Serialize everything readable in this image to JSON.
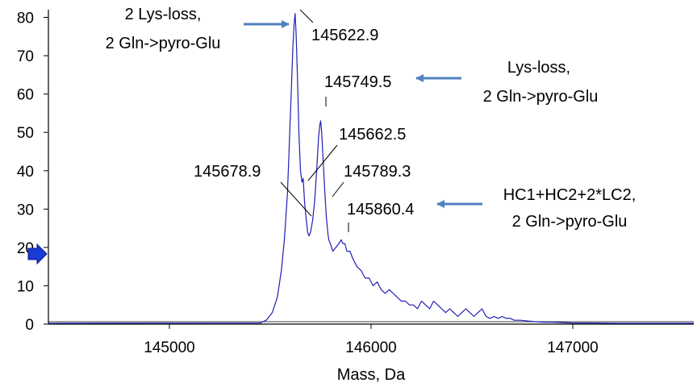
{
  "chart_data": {
    "type": "line",
    "title": "",
    "xlabel": "Mass, Da",
    "ylabel": "",
    "xlim": [
      144400,
      147600
    ],
    "ylim": [
      0,
      82
    ],
    "x_ticks": [
      145000,
      146000,
      147000
    ],
    "y_ticks": [
      0,
      10,
      20,
      30,
      40,
      50,
      60,
      70,
      80
    ],
    "grid": false,
    "legend": "none",
    "colors": {
      "line": "#1f1fb4",
      "arrow": "#4f81bd",
      "axis": "#000000",
      "marker": "#1a3ad6"
    },
    "series": [
      {
        "x": [
          144400,
          145450,
          145480,
          145510,
          145535,
          145555,
          145570,
          145585,
          145595,
          145605,
          145612,
          145618,
          145623,
          145628,
          145635,
          145642,
          145650,
          145657,
          145663,
          145670,
          145675,
          145679,
          145685,
          145692,
          145700,
          145710,
          145720,
          145730,
          145740,
          145746,
          145750,
          145755,
          145762,
          145770,
          145778,
          145785,
          145790,
          145798,
          145810,
          145825,
          145840,
          145852,
          145860,
          145870,
          145880,
          145895,
          145910,
          145930,
          145950,
          145970,
          145990,
          146010,
          146030,
          146050,
          146070,
          146090,
          146110,
          146130,
          146150,
          146170,
          146190,
          146210,
          146230,
          146250,
          146270,
          146290,
          146310,
          146330,
          146350,
          146370,
          146390,
          146410,
          146430,
          146450,
          146470,
          146490,
          146510,
          146530,
          146550,
          146570,
          146590,
          146610,
          146630,
          146650,
          146670,
          146690,
          146710,
          146740,
          146780,
          146820,
          146860,
          146900,
          146950,
          147000,
          147100,
          147200,
          147300,
          147400,
          147500,
          147600
        ],
        "y": [
          0.2,
          0.3,
          1,
          3,
          7,
          14,
          22,
          34,
          48,
          62,
          72,
          78,
          81,
          76,
          64,
          50,
          40,
          37,
          38,
          32,
          29,
          27,
          24,
          23,
          24,
          27,
          32,
          40,
          49,
          52,
          53,
          50,
          43,
          35,
          28,
          24,
          22,
          21,
          19,
          20,
          21,
          22,
          21,
          21,
          19,
          19,
          17,
          15,
          14,
          12,
          12,
          10,
          11,
          9,
          8,
          9,
          8,
          7,
          6,
          6,
          5,
          5,
          4,
          6,
          5,
          4,
          6,
          5,
          4,
          3,
          4,
          3,
          2,
          3,
          4,
          3,
          2,
          3,
          4,
          2,
          1.5,
          2,
          1.5,
          2,
          1.5,
          1.5,
          1,
          1,
          0.8,
          0.6,
          0.5,
          0.5,
          0.4,
          0.3,
          0.3,
          0.2,
          0.2,
          0.2,
          0.2,
          0.2
        ]
      }
    ],
    "peak_labels": [
      {
        "text": "145622.9",
        "mass": 145622.9
      },
      {
        "text": "145749.5",
        "mass": 145749.5
      },
      {
        "text": "145662.5",
        "mass": 145662.5
      },
      {
        "text": "145678.9",
        "mass": 145678.9
      },
      {
        "text": "145789.3",
        "mass": 145789.3
      },
      {
        "text": "145860.4",
        "mass": 145860.4
      }
    ],
    "annotations": [
      {
        "lines": [
          "2 Lys-loss,",
          "2 Gln->pyro-Glu"
        ],
        "points_to": "145622.9"
      },
      {
        "lines": [
          "Lys-loss,",
          "2 Gln->pyro-Glu"
        ],
        "points_to": "145749.5"
      },
      {
        "lines": [
          "HC1+HC2+2*LC2,",
          "2 Gln->pyro-Glu"
        ],
        "points_to": "145860.4"
      }
    ]
  }
}
